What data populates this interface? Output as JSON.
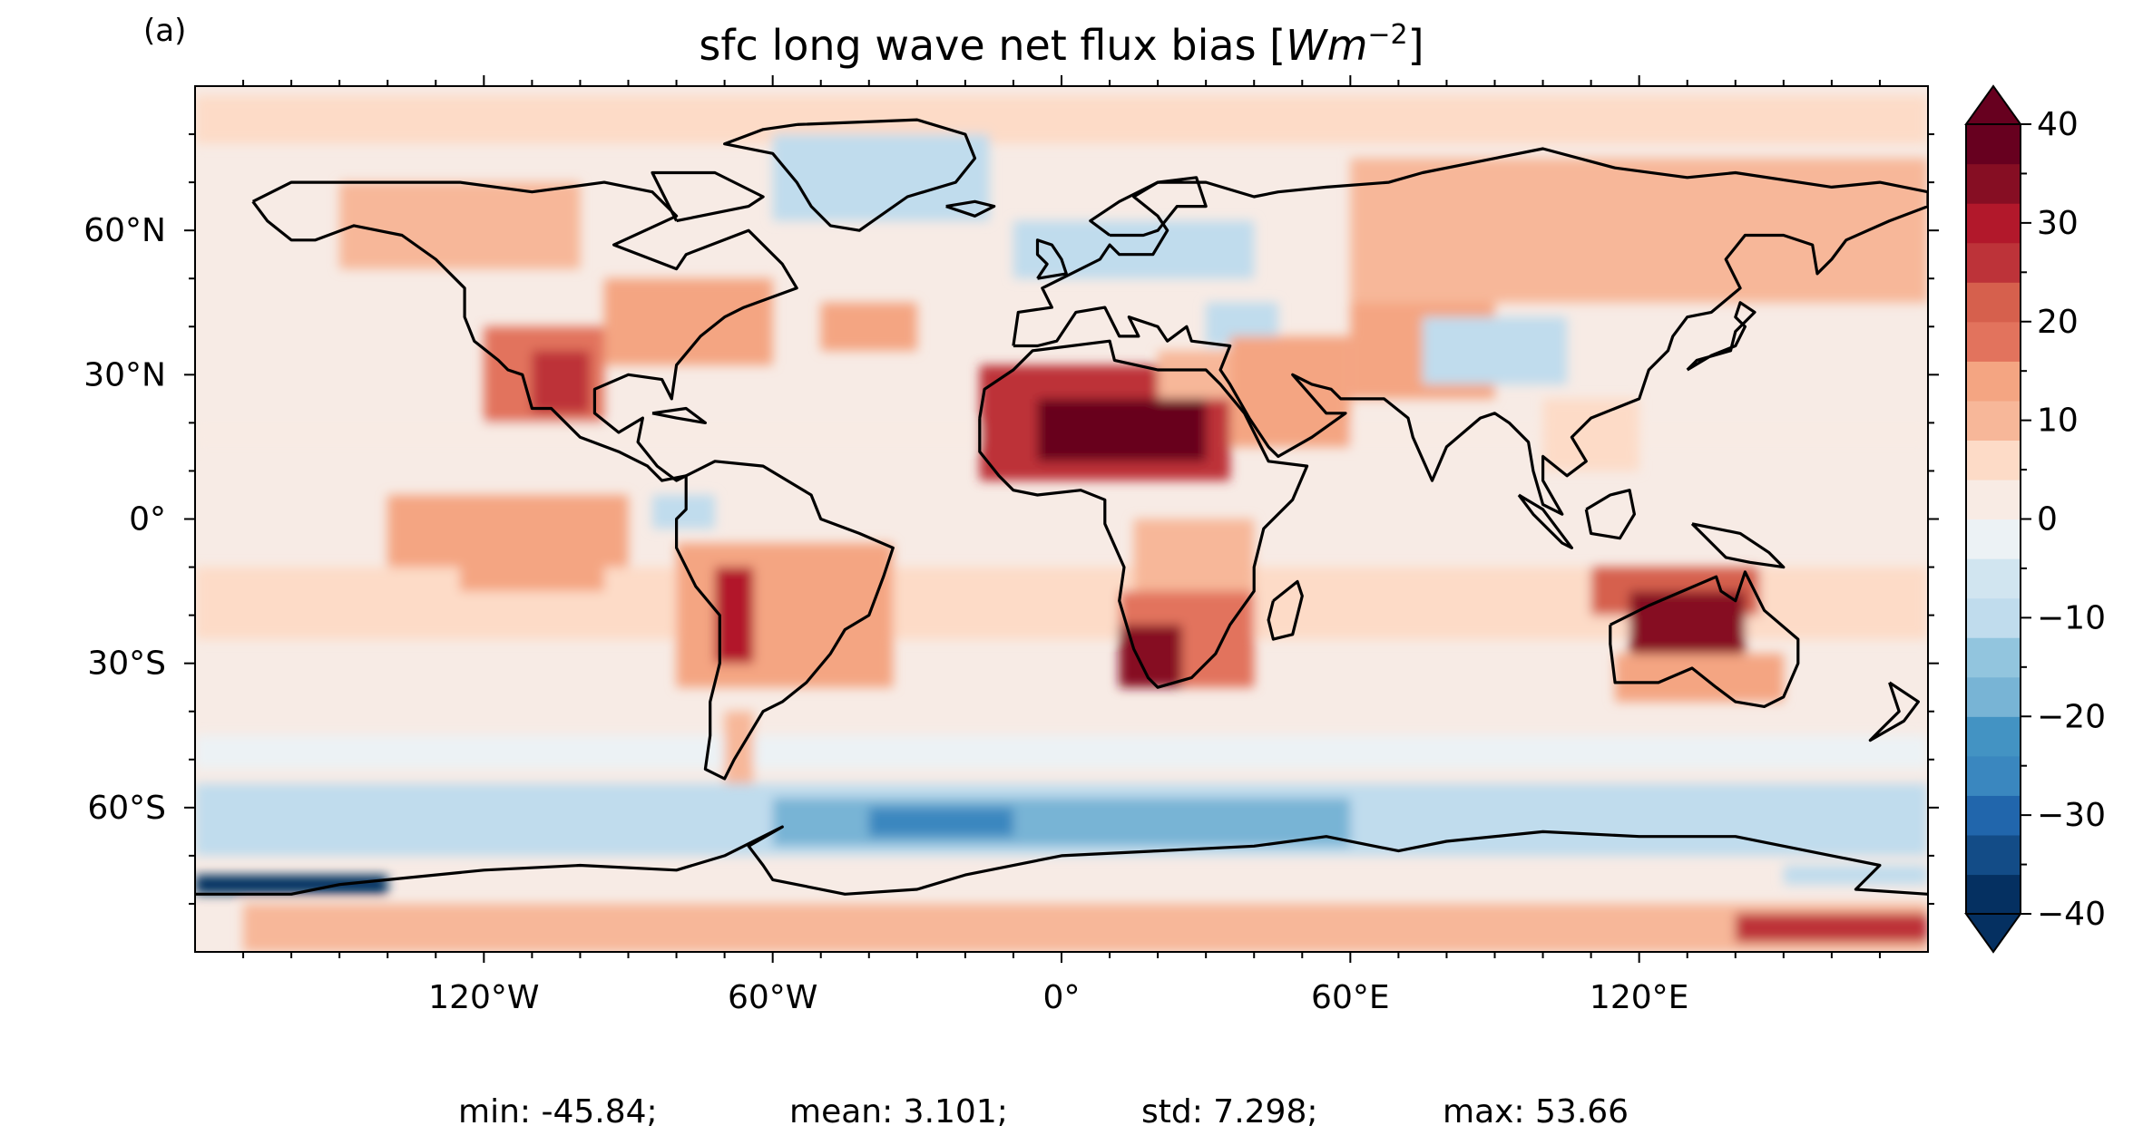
{
  "panel_label": "(a)",
  "title_prefix": "sfc long wave net flux bias [",
  "title_unit": "Wm",
  "title_exp": "−2",
  "title_suffix": "]",
  "x_ticks": [
    {
      "lon": -120,
      "label": "120°W"
    },
    {
      "lon": -60,
      "label": "60°W"
    },
    {
      "lon": 0,
      "label": "0°"
    },
    {
      "lon": 60,
      "label": "60°E"
    },
    {
      "lon": 120,
      "label": "120°E"
    }
  ],
  "y_ticks": [
    {
      "lat": 60,
      "label": "60°N"
    },
    {
      "lat": 30,
      "label": "30°N"
    },
    {
      "lat": 0,
      "label": "0°"
    },
    {
      "lat": -30,
      "label": "30°S"
    },
    {
      "lat": -60,
      "label": "60°S"
    }
  ],
  "colorbar": {
    "min": -40,
    "max": 40,
    "step": 5,
    "extend": "both",
    "ticks": [
      {
        "value": 40,
        "label": "40"
      },
      {
        "value": 30,
        "label": "30"
      },
      {
        "value": 20,
        "label": "20"
      },
      {
        "value": 10,
        "label": "10"
      },
      {
        "value": 0,
        "label": "0"
      },
      {
        "value": -10,
        "label": "−10"
      },
      {
        "value": -20,
        "label": "−20"
      },
      {
        "value": -30,
        "label": "−30"
      },
      {
        "value": -40,
        "label": "−40"
      }
    ],
    "colors": [
      "#053061",
      "#134c87",
      "#2166ac",
      "#3a87bf",
      "#4393c3",
      "#78b4d5",
      "#92c5de",
      "#c0dced",
      "#d1e5f0",
      "#ecf2f5",
      "#f8ebe4",
      "#fddbc7",
      "#f7b799",
      "#f4a582",
      "#e2735d",
      "#d6604d",
      "#bd3339",
      "#b2182b",
      "#860e23",
      "#67001f"
    ]
  },
  "stats": {
    "min": "min: -45.84;",
    "mean": "mean: 3.101;",
    "std": "std: 7.298;",
    "max": "max: 53.66"
  },
  "chart_data": {
    "type": "heatmap",
    "projection": "PlateCarree",
    "xlim": [
      -180,
      180
    ],
    "ylim": [
      -90,
      90
    ],
    "vmin": -40,
    "vmax": 40,
    "statistics": {
      "min": -45.84,
      "mean": 3.101,
      "std": 7.298,
      "max": 53.66
    },
    "field_features": [
      {
        "region": "Sahara / Sahel",
        "approx_bias": 35
      },
      {
        "region": "Australia interior",
        "approx_bias": 30
      },
      {
        "region": "Southern Africa",
        "approx_bias": 30
      },
      {
        "region": "Andes",
        "approx_bias": 25
      },
      {
        "region": "Mexico / SW United States",
        "approx_bias": 20
      },
      {
        "region": "Middle East",
        "approx_bias": 15
      },
      {
        "region": "North Atlantic subtropics",
        "approx_bias": 10
      },
      {
        "region": "Greenland coast",
        "approx_bias": -10
      },
      {
        "region": "Tibetan Plateau",
        "approx_bias": -10
      },
      {
        "region": "Southern Ocean 60S",
        "approx_bias": -15
      },
      {
        "region": "Weddell Sea",
        "approx_bias": -20
      },
      {
        "region": "Ross Sea edge",
        "approx_bias": -40
      }
    ]
  }
}
